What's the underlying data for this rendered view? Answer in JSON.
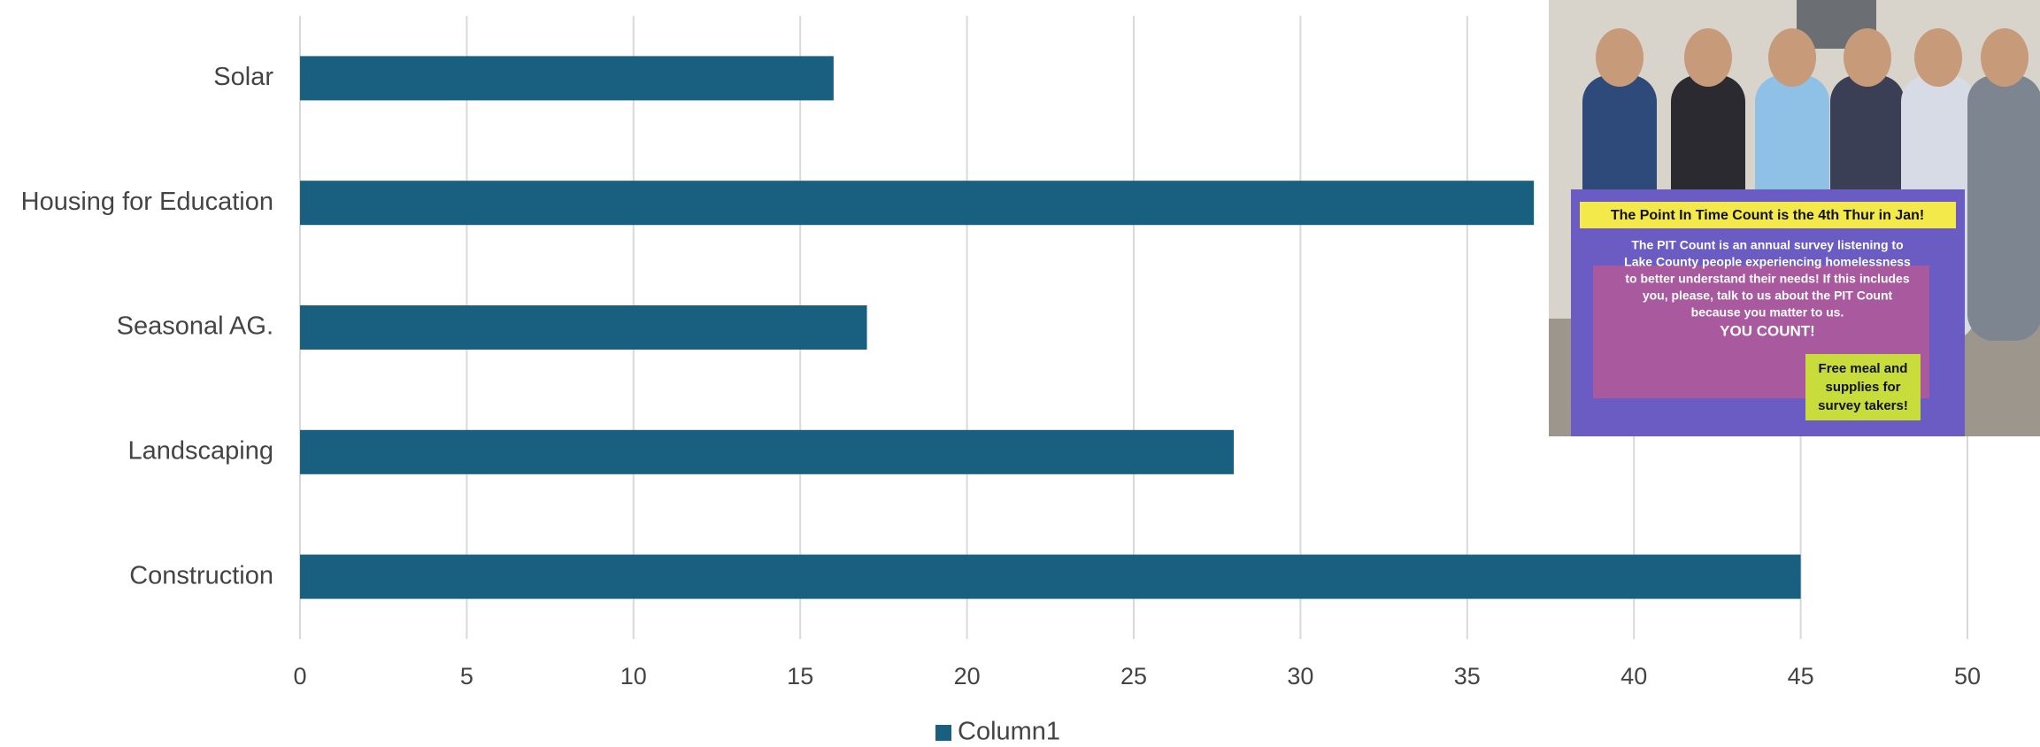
{
  "chart_data": {
    "type": "bar",
    "orientation": "horizontal",
    "categories": [
      "Solar",
      "Housing for Education",
      "Seasonal AG.",
      "Landscaping",
      "Construction"
    ],
    "series": [
      {
        "name": "Column1",
        "color": "#185f80",
        "values": [
          16,
          37,
          17,
          28,
          45
        ]
      }
    ],
    "xlim": [
      0,
      50
    ],
    "xticks": [
      0,
      5,
      10,
      15,
      20,
      25,
      30,
      35,
      40,
      45,
      50
    ],
    "grid": true,
    "legend": "bottom"
  },
  "photo": {
    "banner_title": "The Point In Time Count is the 4th Thur in Jan!",
    "banner_body": [
      "The PIT Count is an annual survey listening to",
      "Lake County people experiencing homelessness",
      "to better understand their needs! If this includes",
      "you, please, talk to us about the PIT Count",
      "because you matter to us."
    ],
    "banner_shout": "YOU COUNT!",
    "banner_note": [
      "Free meal and",
      "supplies for",
      "survey takers!"
    ]
  }
}
